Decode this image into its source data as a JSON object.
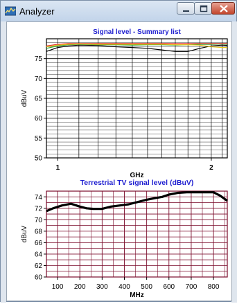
{
  "window": {
    "title": "Analyzer",
    "icon": "spectrum-analyzer-icon"
  },
  "colors": {
    "chart_title": "#1f1fd0",
    "grid_top": "#000000",
    "grid_bottom": "#7a0a2a",
    "series_black": "#000000",
    "series_green": "#2aa52a",
    "series_red": "#e23030",
    "series_yellow": "#e6c21a",
    "thick_series": "#000000"
  },
  "chart_data": [
    {
      "type": "line",
      "title": "Signal level - Summary list",
      "xlabel": "GHz",
      "ylabel": "dBuV",
      "x_scale": "log",
      "xlim": [
        0.95,
        2.15
      ],
      "ylim": [
        50,
        80
      ],
      "yticks": [
        50,
        55,
        60,
        65,
        70,
        75
      ],
      "xticks": [
        1,
        2
      ],
      "grid": true,
      "x": [
        0.95,
        1.0,
        1.05,
        1.1,
        1.2,
        1.3,
        1.4,
        1.5,
        1.6,
        1.7,
        1.8,
        1.9,
        2.0,
        2.1,
        2.15
      ],
      "series": [
        {
          "color": "#000000",
          "values": [
            76.8,
            77.8,
            78.2,
            78.4,
            78.3,
            78.0,
            77.8,
            77.6,
            77.2,
            76.8,
            76.8,
            77.6,
            78.2,
            78.4,
            78.3
          ]
        },
        {
          "color": "#2aa52a",
          "values": [
            77.6,
            78.2,
            78.5,
            78.6,
            78.5,
            78.5,
            78.4,
            78.5,
            78.5,
            78.4,
            78.5,
            78.6,
            78.6,
            78.7,
            78.6
          ]
        },
        {
          "color": "#e23030",
          "values": [
            78.2,
            78.6,
            78.8,
            78.8,
            78.8,
            78.8,
            78.8,
            78.8,
            78.8,
            78.8,
            78.8,
            78.8,
            78.8,
            78.8,
            78.8
          ]
        },
        {
          "color": "#e6c21a",
          "values": [
            78.0,
            78.4,
            78.6,
            78.7,
            78.6,
            78.6,
            78.6,
            78.6,
            78.6,
            78.5,
            78.5,
            78.4,
            78.0,
            77.8,
            77.8
          ]
        }
      ]
    },
    {
      "type": "line",
      "title": "Terrestrial TV signal level (dBuV)",
      "xlabel": "MHz",
      "ylabel": "dBuV",
      "xlim": [
        50,
        862
      ],
      "ylim": [
        60,
        75
      ],
      "yticks": [
        60,
        62,
        64,
        66,
        68,
        70,
        72,
        74
      ],
      "xticks": [
        100,
        200,
        300,
        400,
        500,
        600,
        700,
        800
      ],
      "grid": true,
      "x": [
        50,
        80,
        120,
        160,
        200,
        230,
        260,
        300,
        340,
        380,
        420,
        460,
        500,
        540,
        570,
        600,
        640,
        680,
        720,
        760,
        800,
        830,
        862
      ],
      "series": [
        {
          "color": "#000000",
          "values": [
            71.5,
            72.0,
            72.5,
            72.8,
            72.3,
            72.0,
            71.9,
            71.9,
            72.3,
            72.5,
            72.7,
            73.1,
            73.5,
            73.8,
            74.0,
            74.4,
            74.7,
            74.8,
            74.8,
            74.8,
            74.8,
            74.2,
            73.3
          ]
        }
      ]
    }
  ]
}
